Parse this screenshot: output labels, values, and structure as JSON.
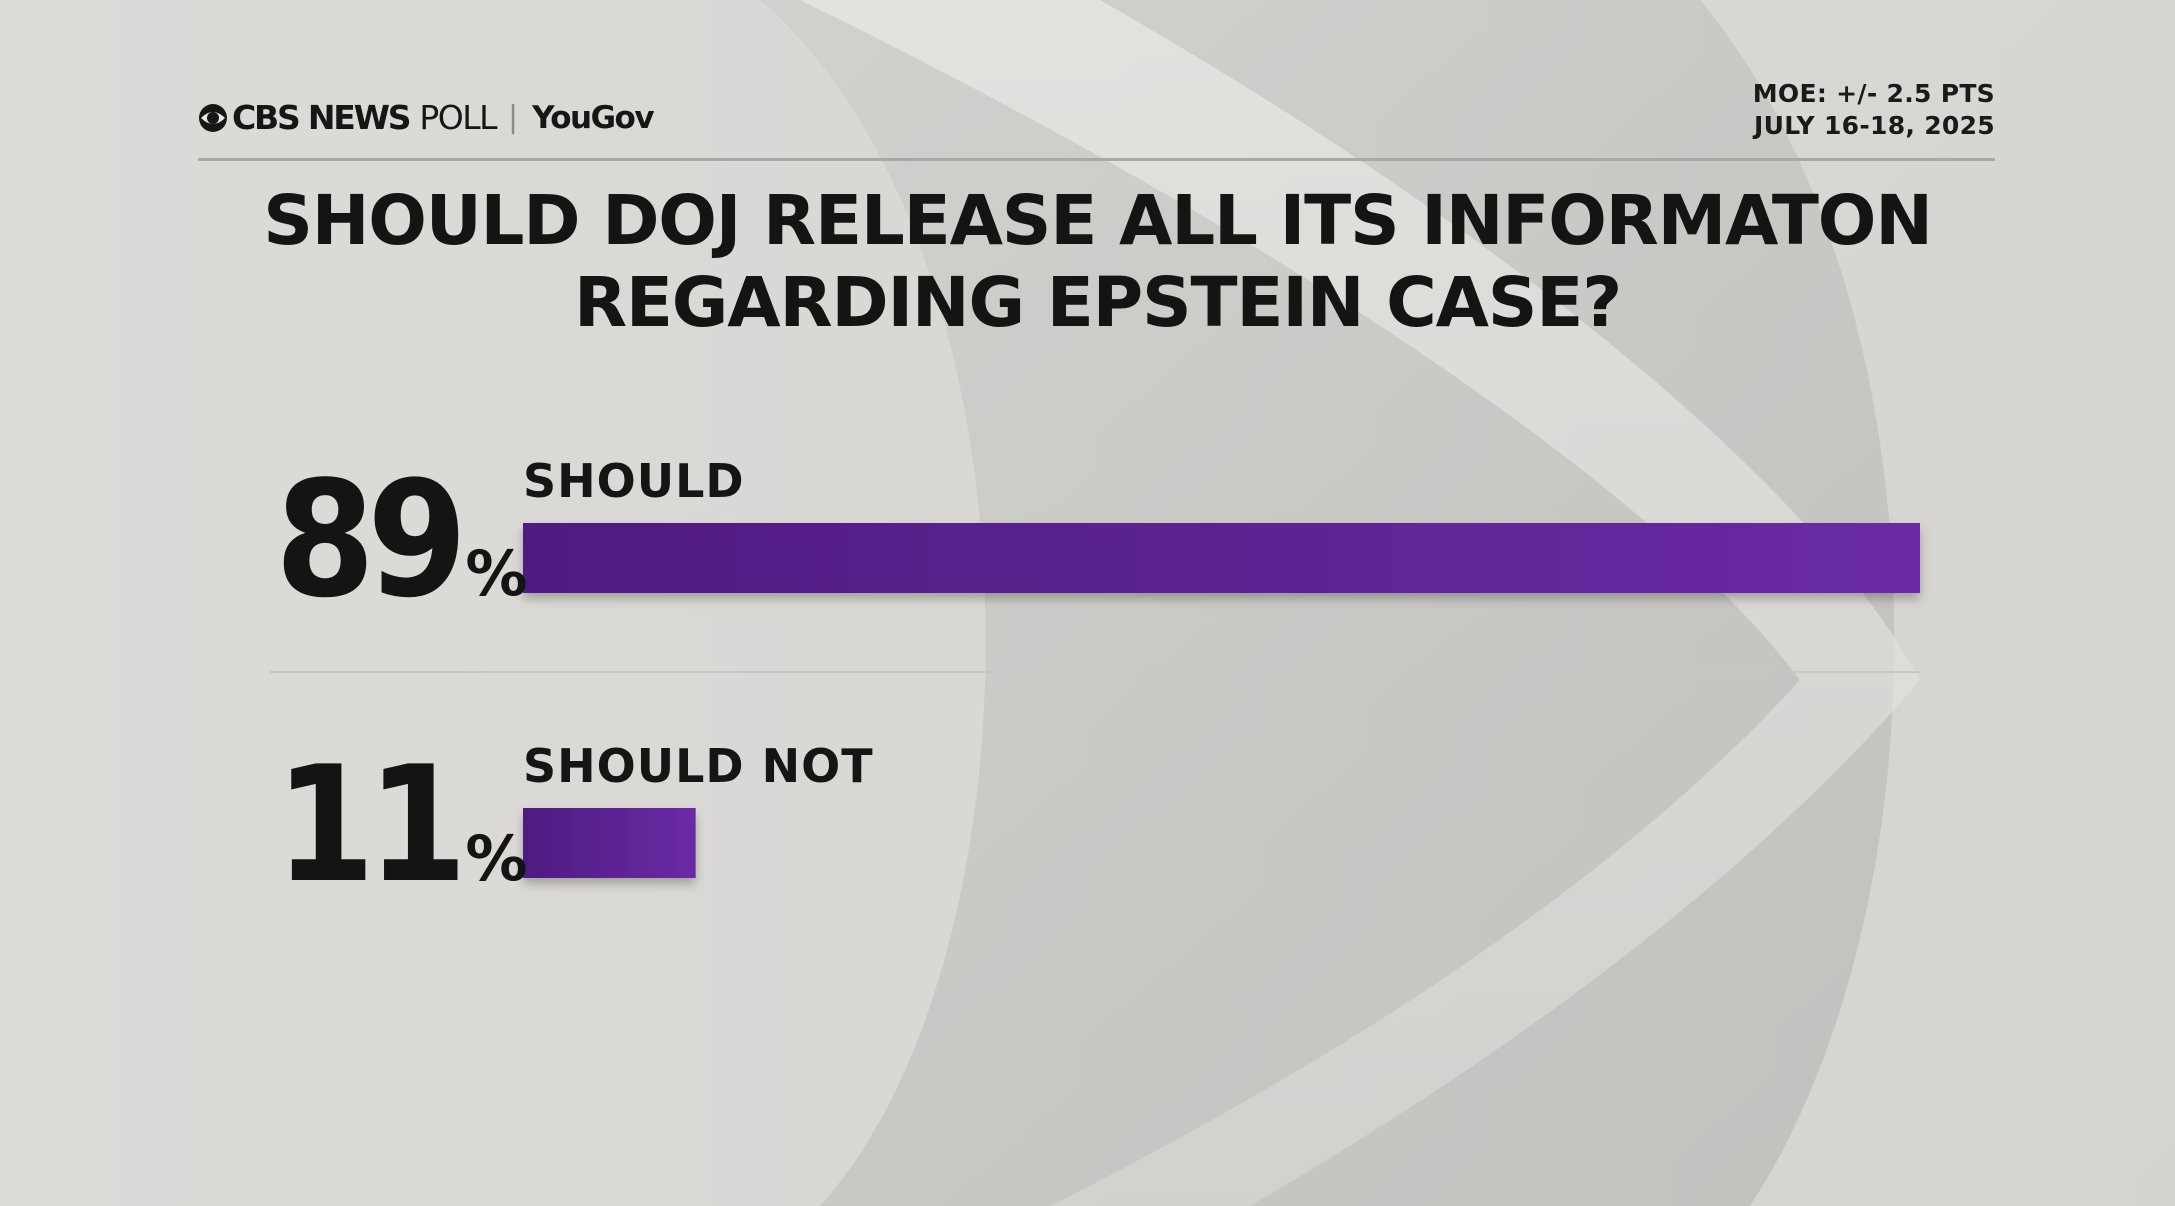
{
  "header": {
    "brand_network": "CBS NEWS",
    "brand_poll": "POLL",
    "brand_separator": "|",
    "brand_partner": "YouGov",
    "moe": "MOE: +/- 2.5 PTS",
    "dates": "JULY 16-18, 2025"
  },
  "title_lines": [
    "SHOULD DOJ RELEASE ALL ITS INFORMATON",
    "REGARDING EPSTEIN CASE?"
  ],
  "colors": {
    "bar": "#5a2290",
    "bar_light": "#6a2aa4",
    "text": "#141414"
  },
  "chart_data": {
    "type": "bar",
    "orientation": "horizontal",
    "title": "SHOULD DOJ RELEASE ALL ITS INFORMATON REGARDING EPSTEIN CASE?",
    "categories": [
      "SHOULD",
      "SHOULD NOT"
    ],
    "values": [
      89,
      11
    ],
    "value_labels": [
      "89",
      "11"
    ],
    "value_suffix": "%",
    "xlim": [
      0,
      100
    ],
    "grid": false,
    "legend": "none"
  }
}
